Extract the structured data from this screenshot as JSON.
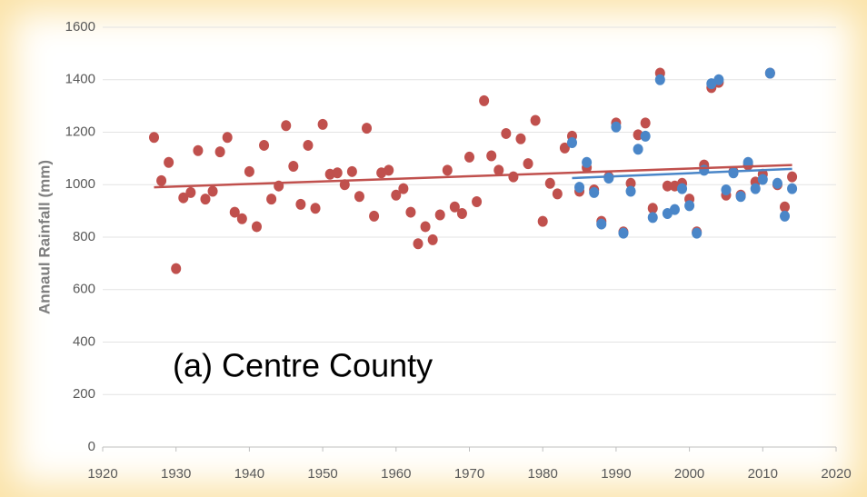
{
  "chart_data": {
    "type": "scatter",
    "y_label": "Annaul Rainfall (mm)",
    "annotation": "(a) Centre County",
    "xlim": [
      1920,
      2020
    ],
    "xticks": [
      1920,
      1930,
      1940,
      1950,
      1960,
      1970,
      1980,
      1990,
      2000,
      2010,
      2020
    ],
    "ylim": [
      0,
      1600
    ],
    "yticks": [
      0,
      200,
      400,
      600,
      800,
      1000,
      1200,
      1400,
      1600
    ],
    "grid": true,
    "series": [
      {
        "color": "#c0504d",
        "x": [
          1927,
          1928,
          1929,
          1930,
          1931,
          1932,
          1933,
          1934,
          1935,
          1936,
          1937,
          1938,
          1939,
          1940,
          1941,
          1942,
          1943,
          1944,
          1945,
          1946,
          1947,
          1948,
          1949,
          1950,
          1951,
          1952,
          1953,
          1954,
          1955,
          1956,
          1957,
          1958,
          1959,
          1960,
          1961,
          1962,
          1963,
          1964,
          1965,
          1966,
          1967,
          1968,
          1969,
          1970,
          1971,
          1972,
          1973,
          1974,
          1975,
          1976,
          1977,
          1978,
          1979,
          1980,
          1981,
          1982,
          1983,
          1984,
          1985,
          1986,
          1987,
          1988,
          1989,
          1990,
          1991,
          1992,
          1993,
          1994,
          1995,
          1996,
          1997,
          1998,
          1999,
          2000,
          2001,
          2002,
          2003,
          2004,
          2005,
          2006,
          2007,
          2008,
          2009,
          2010,
          2011,
          2012,
          2013,
          2014
        ],
        "values": [
          1180,
          1015,
          1085,
          680,
          950,
          970,
          1130,
          945,
          975,
          1125,
          1180,
          895,
          870,
          1050,
          840,
          1150,
          945,
          995,
          1225,
          1070,
          925,
          1150,
          910,
          1230,
          1040,
          1045,
          1000,
          1050,
          955,
          1215,
          880,
          1045,
          1055,
          960,
          985,
          895,
          775,
          840,
          790,
          885,
          1055,
          915,
          890,
          1105,
          935,
          1320,
          1110,
          1055,
          1195,
          1030,
          1175,
          1080,
          1245,
          860,
          1005,
          965,
          1140,
          1185,
          975,
          1065,
          980,
          860,
          1030,
          1235,
          820,
          1005,
          1190,
          1235,
          910,
          1425,
          995,
          995,
          1005,
          945,
          820,
          1075,
          1370,
          1390,
          960,
          1050,
          960,
          1075,
          1010,
          1040,
          1425,
          1000,
          915,
          1030
        ],
        "trend": {
          "x": [
            1927,
            2014
          ],
          "values": [
            990,
            1075
          ]
        }
      },
      {
        "color": "#4a86c8",
        "x": [
          1984,
          1985,
          1986,
          1987,
          1988,
          1989,
          1990,
          1991,
          1992,
          1993,
          1994,
          1995,
          1996,
          1997,
          1998,
          1999,
          2000,
          2001,
          2002,
          2003,
          2004,
          2005,
          2006,
          2007,
          2008,
          2009,
          2010,
          2011,
          2012,
          2013,
          2014
        ],
        "values": [
          1160,
          990,
          1085,
          970,
          850,
          1025,
          1220,
          815,
          975,
          1135,
          1185,
          875,
          1400,
          890,
          905,
          985,
          920,
          815,
          1055,
          1385,
          1400,
          980,
          1045,
          955,
          1085,
          985,
          1020,
          1425,
          1005,
          880,
          985
        ],
        "trend": {
          "x": [
            1984,
            2014
          ],
          "values": [
            1025,
            1060
          ]
        }
      }
    ]
  }
}
